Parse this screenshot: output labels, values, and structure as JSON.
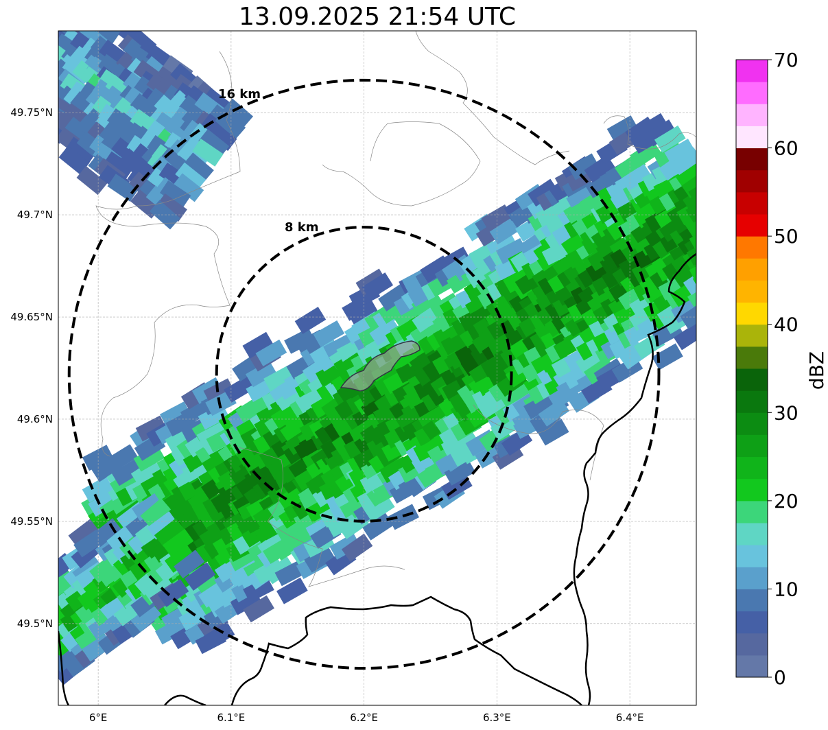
{
  "title": "13.09.2025 21:54 UTC",
  "map": {
    "lon_range": [
      5.97,
      6.45
    ],
    "lat_range": [
      49.46,
      49.79
    ],
    "center": {
      "lon": 6.2,
      "lat": 49.622
    },
    "grid_lines": true,
    "lon_ticks": [
      {
        "value": 6.0,
        "label": "6°E"
      },
      {
        "value": 6.1,
        "label": "6.1°E"
      },
      {
        "value": 6.2,
        "label": "6.2°E"
      },
      {
        "value": 6.3,
        "label": "6.3°E"
      },
      {
        "value": 6.4,
        "label": "6.4°E"
      }
    ],
    "lat_ticks": [
      {
        "value": 49.75,
        "label": "49.75°N"
      },
      {
        "value": 49.7,
        "label": "49.7°N"
      },
      {
        "value": 49.65,
        "label": "49.65°N"
      },
      {
        "value": 49.6,
        "label": "49.6°N"
      },
      {
        "value": 49.55,
        "label": "49.55°N"
      },
      {
        "value": 49.5,
        "label": "49.5°N"
      }
    ],
    "range_rings": [
      {
        "radius_km": 8,
        "label": "8 km"
      },
      {
        "radius_km": 16,
        "label": "16 km"
      }
    ]
  },
  "colorbar": {
    "label": "dBZ",
    "min": 0,
    "max": 70,
    "step": 2.5,
    "ticks": [
      {
        "value": 0,
        "label": "0"
      },
      {
        "value": 10,
        "label": "10"
      },
      {
        "value": 20,
        "label": "20"
      },
      {
        "value": 30,
        "label": "30"
      },
      {
        "value": 40,
        "label": "40"
      },
      {
        "value": 50,
        "label": "50"
      },
      {
        "value": 60,
        "label": "60"
      },
      {
        "value": 70,
        "label": "70"
      }
    ],
    "colors": [
      "#6478a8",
      "#56689f",
      "#4560a6",
      "#4a78b0",
      "#5aa0cc",
      "#68c3dd",
      "#5fd6c4",
      "#3cd67a",
      "#12c81e",
      "#10b41a",
      "#0ea016",
      "#0c8c12",
      "#0a780e",
      "#0a640a",
      "#4a7a0a",
      "#aab40a",
      "#ffd800",
      "#ffb400",
      "#ffa000",
      "#ff7800",
      "#e60000",
      "#c80000",
      "#a00000",
      "#780000",
      "#ffe6ff",
      "#ffb4ff",
      "#ff6cff",
      "#f032f0"
    ]
  }
}
